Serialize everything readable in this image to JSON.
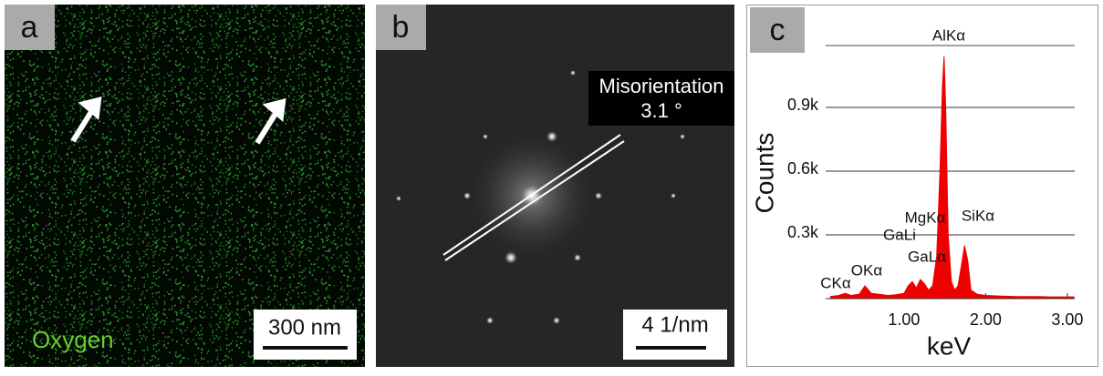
{
  "panels": [
    {
      "label": "a",
      "caption": "Oxygen",
      "scale_bar": "300 nm"
    },
    {
      "label": "b",
      "annotation": "Misorientation",
      "angle": "3.1 °",
      "scale_bar": "4 1/nm"
    },
    {
      "label": "c"
    }
  ],
  "chart_data": {
    "type": "area",
    "xlabel": "keV",
    "ylabel": "Counts",
    "color": "#ee0000",
    "x": [
      0.1,
      0.2,
      0.28,
      0.35,
      0.45,
      0.52,
      0.6,
      0.7,
      0.8,
      0.9,
      1.0,
      1.05,
      1.1,
      1.15,
      1.2,
      1.25,
      1.3,
      1.35,
      1.4,
      1.44,
      1.47,
      1.49,
      1.51,
      1.54,
      1.58,
      1.62,
      1.66,
      1.7,
      1.74,
      1.78,
      1.82,
      1.9,
      2.0,
      2.2,
      2.4,
      2.6,
      2.8,
      3.0,
      3.08
    ],
    "values": [
      10,
      15,
      25,
      15,
      20,
      60,
      25,
      20,
      15,
      18,
      25,
      60,
      80,
      50,
      90,
      70,
      40,
      60,
      200,
      600,
      1000,
      1140,
      900,
      300,
      80,
      40,
      60,
      150,
      250,
      180,
      40,
      20,
      15,
      12,
      10,
      10,
      8,
      8,
      8
    ],
    "xlim": [
      0.04,
      3.09
    ],
    "ylim": [
      0,
      1200
    ],
    "xticks": [
      {
        "value": 1,
        "label": "1.00"
      },
      {
        "value": 2,
        "label": "2.00"
      },
      {
        "value": 3,
        "label": "3.00"
      }
    ],
    "yticks": [
      {
        "value": 300,
        "label": "0.3k"
      },
      {
        "value": 600,
        "label": "0.6k"
      },
      {
        "value": 900,
        "label": "0.9k"
      }
    ],
    "grid": true,
    "peak_labels": [
      "AlKα",
      "CKα",
      "OKα",
      "GaLα",
      "GaLi",
      "MgKα",
      "SiKα"
    ]
  }
}
